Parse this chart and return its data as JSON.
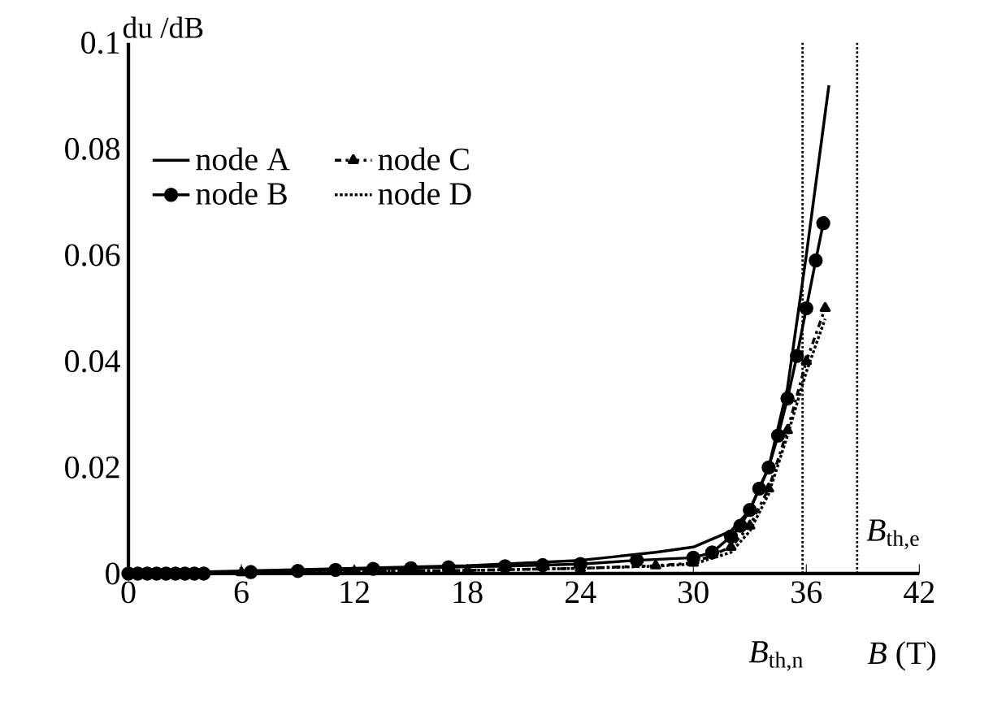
{
  "chart_data": {
    "type": "line",
    "xlabel": "*B* (T)",
    "ylabel": "du /dB",
    "xlim": [
      0,
      42
    ],
    "ylim": [
      0,
      0.1
    ],
    "xticks": [
      0,
      6,
      12,
      18,
      24,
      30,
      36,
      42
    ],
    "yticks": [
      0,
      0.02,
      0.04,
      0.06,
      0.08,
      0.1
    ],
    "grid": false,
    "legend": "top left",
    "series": [
      {
        "name": "node A",
        "color": "#000000",
        "line_style": "solid",
        "marker": "none",
        "x": [
          0,
          6,
          12,
          18,
          24,
          28,
          30,
          32,
          33,
          34,
          35,
          36,
          37.2
        ],
        "values": [
          0,
          0.0005,
          0.001,
          0.0015,
          0.0025,
          0.004,
          0.005,
          0.008,
          0.012,
          0.02,
          0.035,
          0.06,
          0.092
        ]
      },
      {
        "name": "node C",
        "color": "#000000",
        "line_style": "dashed",
        "marker": "triangle",
        "x": [
          0,
          6,
          12,
          18,
          24,
          28,
          30,
          32,
          33,
          34,
          35,
          36,
          37
        ],
        "values": [
          0,
          0.0002,
          0.0004,
          0.0006,
          0.001,
          0.0015,
          0.002,
          0.005,
          0.009,
          0.016,
          0.027,
          0.04,
          0.05
        ]
      },
      {
        "name": "node B",
        "color": "#000000",
        "line_style": "solid",
        "marker": "circle",
        "x": [
          0,
          0.5,
          1,
          1.5,
          2,
          2.5,
          3,
          3.5,
          4,
          6.5,
          9,
          11,
          13,
          15,
          17,
          20,
          22,
          24,
          27,
          30,
          31,
          32,
          32.5,
          33,
          33.5,
          34,
          34.5,
          35,
          35.5,
          36,
          36.5,
          36.9
        ],
        "values": [
          0,
          0,
          0,
          0,
          0,
          0,
          0,
          0,
          0,
          0.0003,
          0.0005,
          0.0007,
          0.0009,
          0.001,
          0.0012,
          0.0014,
          0.0016,
          0.0018,
          0.0025,
          0.003,
          0.004,
          0.007,
          0.009,
          0.012,
          0.016,
          0.02,
          0.026,
          0.033,
          0.041,
          0.05,
          0.059,
          0.066
        ]
      },
      {
        "name": "node D",
        "color": "#000000",
        "line_style": "dotted",
        "marker": "none",
        "x": [
          0,
          6,
          12,
          18,
          24,
          28,
          30,
          32,
          33,
          34,
          35,
          36,
          37
        ],
        "values": [
          0,
          0.0002,
          0.0004,
          0.0006,
          0.001,
          0.0014,
          0.0018,
          0.004,
          0.008,
          0.015,
          0.026,
          0.038,
          0.048
        ]
      }
    ],
    "ref_lines": [
      {
        "axis": "x",
        "value": 35.8,
        "label": "*B*$_{th,n}$",
        "line_style": "dotted"
      },
      {
        "axis": "x",
        "value": 38.7,
        "label": "*B*$_{th,e}$",
        "line_style": "dotted"
      }
    ]
  }
}
